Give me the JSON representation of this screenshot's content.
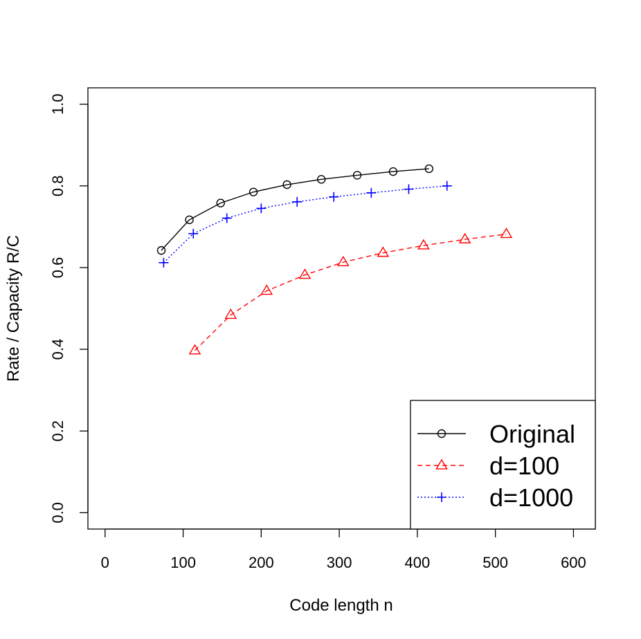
{
  "chart_data": {
    "type": "line",
    "xlabel": "Code length n",
    "ylabel": "Rate / Capacity R/C",
    "xlim": [
      -22,
      628
    ],
    "ylim": [
      -0.04,
      1.04
    ],
    "x_ticks": [
      0,
      100,
      200,
      300,
      400,
      500,
      600
    ],
    "y_ticks": [
      0.0,
      0.2,
      0.4,
      0.6,
      0.8,
      1.0
    ],
    "x_tick_labels": [
      "0",
      "100",
      "200",
      "300",
      "400",
      "500",
      "600"
    ],
    "y_tick_labels": [
      "0.0",
      "0.2",
      "0.4",
      "0.6",
      "0.8",
      "1.0"
    ],
    "grid": false,
    "legend_position": "bottom-right",
    "series": [
      {
        "name": "Original",
        "color": "#000000",
        "line_style": "solid",
        "marker": "circle",
        "x": [
          72,
          108,
          148,
          190,
          233,
          277,
          323,
          369,
          415
        ],
        "y": [
          0.642,
          0.717,
          0.758,
          0.785,
          0.803,
          0.816,
          0.826,
          0.835,
          0.842
        ]
      },
      {
        "name": "d=100",
        "color": "#ff0000",
        "line_style": "dashed",
        "marker": "triangle",
        "x": [
          115,
          161,
          207,
          256,
          305,
          356,
          408,
          461,
          514
        ],
        "y": [
          0.397,
          0.484,
          0.543,
          0.582,
          0.613,
          0.636,
          0.654,
          0.669,
          0.682
        ]
      },
      {
        "name": "d=1000",
        "color": "#0000ff",
        "line_style": "dotted",
        "marker": "plus",
        "x": [
          75,
          113,
          156,
          200,
          246,
          293,
          341,
          389,
          438
        ],
        "y": [
          0.612,
          0.683,
          0.721,
          0.745,
          0.761,
          0.773,
          0.783,
          0.792,
          0.8
        ]
      }
    ]
  }
}
